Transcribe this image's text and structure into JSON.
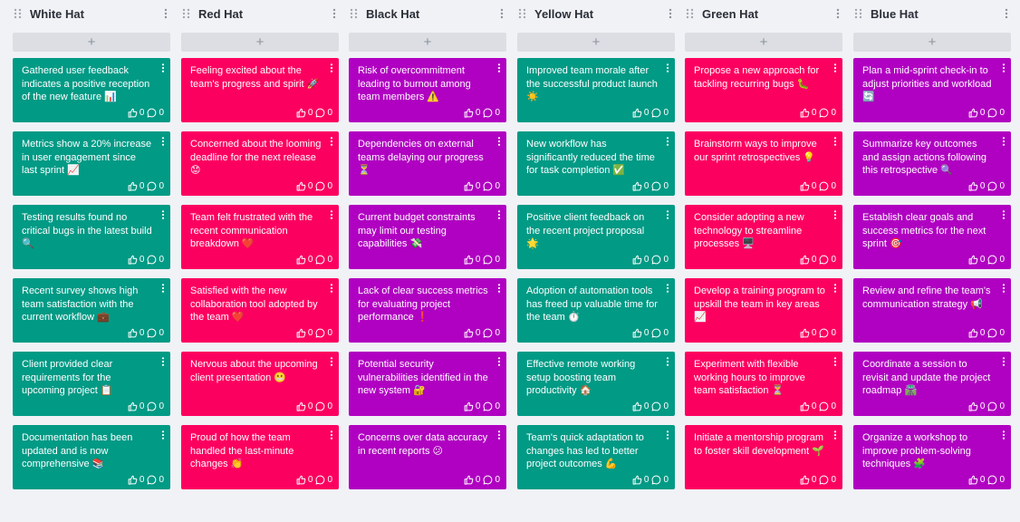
{
  "colors": {
    "teal": "#009a85",
    "red": "#fc0060",
    "purple": "#b000c1"
  },
  "add_label": "+",
  "columns": [
    {
      "title": "White Hat",
      "color": "teal",
      "cards": [
        {
          "text": "Gathered user feedback indicates a positive reception of the new feature 📊",
          "likes": "0",
          "comments": "0"
        },
        {
          "text": "Metrics show a 20% increase in user engagement since last sprint 📈",
          "likes": "0",
          "comments": "0"
        },
        {
          "text": "Testing results found no critical bugs in the latest build 🔍",
          "likes": "0",
          "comments": "0"
        },
        {
          "text": "Recent survey shows high team satisfaction with the current workflow 💼",
          "likes": "0",
          "comments": "0"
        },
        {
          "text": "Client provided clear requirements for the upcoming project 📋",
          "likes": "0",
          "comments": "0"
        },
        {
          "text": "Documentation has been updated and is now comprehensive 📚",
          "likes": "0",
          "comments": "0"
        }
      ]
    },
    {
      "title": "Red Hat",
      "color": "red",
      "cards": [
        {
          "text": "Feeling excited about the team's progress and spirit 🚀",
          "likes": "0",
          "comments": "0"
        },
        {
          "text": "Concerned about the looming deadline for the next release 😟",
          "likes": "0",
          "comments": "0"
        },
        {
          "text": "Team felt frustrated with the recent communication breakdown ❤️",
          "likes": "0",
          "comments": "0"
        },
        {
          "text": "Satisfied with the new collaboration tool adopted by the team ❤️",
          "likes": "0",
          "comments": "0"
        },
        {
          "text": "Nervous about the upcoming client presentation 😬",
          "likes": "0",
          "comments": "0"
        },
        {
          "text": "Proud of how the team handled the last-minute changes 👏",
          "likes": "0",
          "comments": "0"
        }
      ]
    },
    {
      "title": "Black Hat",
      "color": "purple",
      "cards": [
        {
          "text": "Risk of overcommitment leading to burnout among team members ⚠️",
          "likes": "0",
          "comments": "0"
        },
        {
          "text": "Dependencies on external teams delaying our progress ⏳",
          "likes": "0",
          "comments": "0"
        },
        {
          "text": "Current budget constraints may limit our testing capabilities 💸",
          "likes": "0",
          "comments": "0"
        },
        {
          "text": "Lack of clear success metrics for evaluating project performance ❗",
          "likes": "0",
          "comments": "0"
        },
        {
          "text": "Potential security vulnerabilities identified in the new system 🔐",
          "likes": "0",
          "comments": "0"
        },
        {
          "text": "Concerns over data accuracy in recent reports 😕",
          "likes": "0",
          "comments": "0"
        }
      ]
    },
    {
      "title": "Yellow Hat",
      "color": "teal",
      "cards": [
        {
          "text": "Improved team morale after the successful product launch ☀️",
          "likes": "0",
          "comments": "0"
        },
        {
          "text": "New workflow has significantly reduced the time for task completion ✅",
          "likes": "0",
          "comments": "0"
        },
        {
          "text": "Positive client feedback on the recent project proposal 🌟",
          "likes": "0",
          "comments": "0"
        },
        {
          "text": "Adoption of automation tools has freed up valuable time for the team ⏱️",
          "likes": "0",
          "comments": "0"
        },
        {
          "text": "Effective remote working setup boosting team productivity 🏠",
          "likes": "0",
          "comments": "0"
        },
        {
          "text": "Team's quick adaptation to changes has led to better project outcomes 💪",
          "likes": "0",
          "comments": "0"
        }
      ]
    },
    {
      "title": "Green Hat",
      "color": "red",
      "cards": [
        {
          "text": "Propose a new approach for tackling recurring bugs 🐛",
          "likes": "0",
          "comments": "0"
        },
        {
          "text": "Brainstorm ways to improve our sprint retrospectives 💡",
          "likes": "0",
          "comments": "0"
        },
        {
          "text": "Consider adopting a new technology to streamline processes 🖥️",
          "likes": "0",
          "comments": "0"
        },
        {
          "text": "Develop a training program to upskill the team in key areas 📈",
          "likes": "0",
          "comments": "0"
        },
        {
          "text": "Experiment with flexible working hours to improve team satisfaction ⏳",
          "likes": "0",
          "comments": "0"
        },
        {
          "text": "Initiate a mentorship program to foster skill development 🌱",
          "likes": "0",
          "comments": "0"
        }
      ]
    },
    {
      "title": "Blue Hat",
      "color": "purple",
      "cards": [
        {
          "text": "Plan a mid-sprint check-in to adjust priorities and workload 🔄",
          "likes": "0",
          "comments": "0"
        },
        {
          "text": "Summarize key outcomes and assign actions following this retrospective 🔍",
          "likes": "0",
          "comments": "0"
        },
        {
          "text": "Establish clear goals and success metrics for the next sprint 🎯",
          "likes": "0",
          "comments": "0"
        },
        {
          "text": "Review and refine the team's communication strategy 📢",
          "likes": "0",
          "comments": "0"
        },
        {
          "text": "Coordinate a session to revisit and update the project roadmap 🛣️",
          "likes": "0",
          "comments": "0"
        },
        {
          "text": "Organize a workshop to improve problem-solving techniques 🧩",
          "likes": "0",
          "comments": "0"
        }
      ]
    }
  ]
}
